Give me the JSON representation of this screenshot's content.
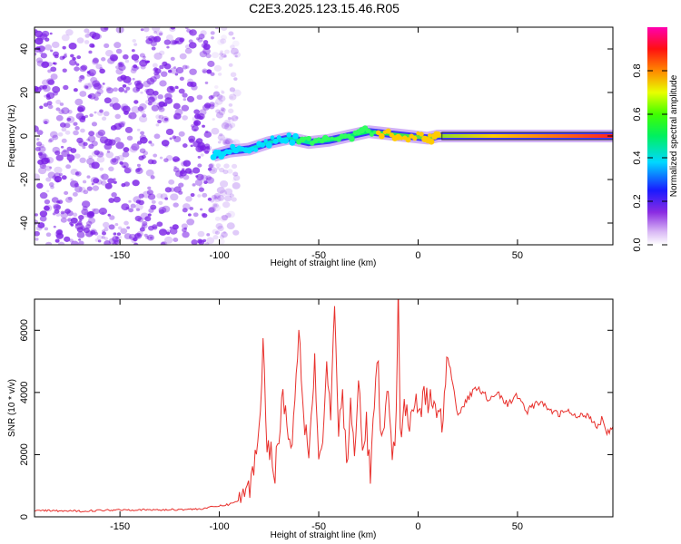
{
  "title": "C2E3.2025.123.15.46.R05",
  "colors": {
    "snr_line": "#e8302c",
    "noise_purple": "#7a1fe6",
    "background": "#ffffff"
  },
  "chart_data": [
    {
      "type": "heatmap",
      "xlabel": "Height of straight line (km)",
      "ylabel": "Frequency (Hz)",
      "xlim": [
        -193,
        98
      ],
      "ylim": [
        -50,
        50
      ],
      "xticks": [
        -150,
        -100,
        -50,
        0,
        50
      ],
      "yticks": [
        -40,
        -20,
        0,
        20,
        40
      ],
      "xtick_labels": [
        "-150",
        "-100",
        "-50",
        "0",
        "50"
      ],
      "ytick_labels": [
        "-40",
        "-20",
        "0",
        "20",
        "40"
      ],
      "colorbar": {
        "label": "Normalized spectral amplitude",
        "range": [
          0,
          1
        ],
        "ticks": [
          0.0,
          0.2,
          0.4,
          0.6,
          0.8
        ],
        "tick_labels": [
          "0.0",
          "0.2",
          "0.4",
          "0.6",
          "0.8"
        ],
        "colormap": "rainbow (white-violet-blue-cyan-green-yellow-red-magenta)"
      },
      "ridge": {
        "x": [
          -103,
          -95,
          -85,
          -75,
          -65,
          -55,
          -45,
          -35,
          -25,
          -15,
          -5,
          5,
          10,
          98
        ],
        "freq": [
          -9,
          -7,
          -6,
          -3,
          -1,
          -3,
          -2,
          0,
          2,
          1,
          0,
          -1,
          0,
          0
        ],
        "amplitude": [
          0.25,
          0.3,
          0.35,
          0.35,
          0.4,
          0.4,
          0.45,
          0.5,
          0.55,
          0.6,
          0.65,
          0.7,
          0.8,
          0.85
        ]
      },
      "noise_region": {
        "x_range": [
          -193,
          -103
        ],
        "level": "scattered low amplitude"
      }
    },
    {
      "type": "line",
      "xlabel": "Height of straight line (km)",
      "ylabel": "SNR (10 * v/v)",
      "xlim": [
        -193,
        98
      ],
      "ylim": [
        0,
        7000
      ],
      "xticks": [
        -150,
        -100,
        -50,
        0,
        50
      ],
      "yticks": [
        0,
        2000,
        4000,
        6000
      ],
      "xtick_labels": [
        "-150",
        "-100",
        "-50",
        "0",
        "50"
      ],
      "ytick_labels": [
        "0",
        "2000",
        "4000",
        "6000"
      ],
      "series": [
        {
          "x": [
            -193,
            -170,
            -150,
            -130,
            -110,
            -95,
            -88,
            -84,
            -80,
            -78,
            -76,
            -72,
            -68,
            -64,
            -60,
            -57,
            -55,
            -52,
            -50,
            -48,
            -46,
            -44,
            -42,
            -40,
            -38,
            -36,
            -34,
            -32,
            -30,
            -28,
            -26,
            -24,
            -22,
            -20,
            -19,
            -17,
            -15,
            -13,
            -11,
            -10,
            -9,
            -7,
            -5,
            -3,
            -1,
            1,
            3,
            5,
            8,
            12,
            15,
            20,
            25,
            30,
            35,
            40,
            45,
            50,
            55,
            60,
            65,
            70,
            75,
            80,
            85,
            88,
            90,
            93,
            95,
            98
          ],
          "y": [
            200,
            180,
            230,
            220,
            250,
            400,
            600,
            1100,
            2800,
            5500,
            2500,
            1500,
            4000,
            2000,
            6000,
            3000,
            2200,
            5000,
            1800,
            2500,
            4800,
            3200,
            6500,
            2600,
            4200,
            1500,
            3500,
            1800,
            4500,
            2000,
            3000,
            1200,
            3800,
            5000,
            2500,
            3200,
            4000,
            1800,
            3000,
            7100,
            2600,
            3800,
            3000,
            3500,
            4000,
            3200,
            4100,
            3600,
            3800,
            3000,
            5200,
            3300,
            3800,
            4200,
            3800,
            4000,
            3600,
            3900,
            3400,
            3700,
            3500,
            3300,
            3400,
            3200,
            3300,
            3100,
            2900,
            3200,
            2700,
            2900
          ]
        }
      ]
    }
  ]
}
